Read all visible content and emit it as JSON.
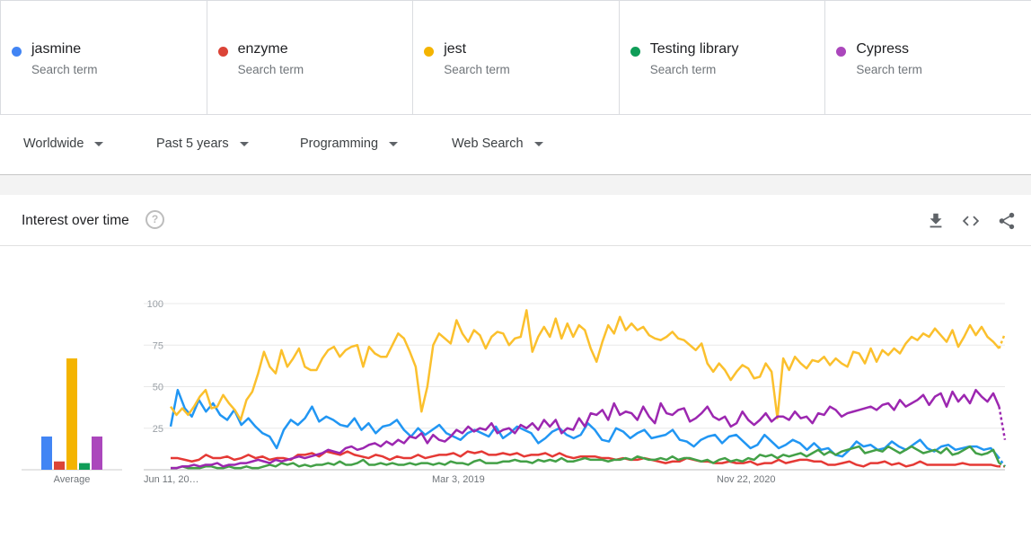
{
  "terms": [
    {
      "name": "jasmine",
      "sub": "Search term",
      "color": "#4285f4"
    },
    {
      "name": "enzyme",
      "sub": "Search term",
      "color": "#db4437"
    },
    {
      "name": "jest",
      "sub": "Search term",
      "color": "#f4b400"
    },
    {
      "name": "Testing library",
      "sub": "Search term",
      "color": "#0f9d58"
    },
    {
      "name": "Cypress",
      "sub": "Search term",
      "color": "#ab47bc"
    }
  ],
  "filters": {
    "region": "Worldwide",
    "time": "Past 5 years",
    "category": "Programming",
    "source": "Web Search"
  },
  "card": {
    "title": "Interest over time",
    "help": "?",
    "icons": [
      "download-icon",
      "embed-icon",
      "share-icon"
    ]
  },
  "chart_data": {
    "type": "line",
    "title": "Interest over time",
    "ylim": [
      0,
      100
    ],
    "y_ticks": [
      25,
      50,
      75,
      100
    ],
    "x_ticks": [
      "Jun 11, 20…",
      "Mar 3, 2019",
      "Nov 22, 2020"
    ],
    "grid": true,
    "average_label": "Average",
    "averages": [
      {
        "term": "jasmine",
        "value": 20,
        "color": "#4285f4"
      },
      {
        "term": "enzyme",
        "value": 5,
        "color": "#db4437"
      },
      {
        "term": "jest",
        "value": 67,
        "color": "#f4b400"
      },
      {
        "term": "Testing library",
        "value": 4,
        "color": "#0f9d58"
      },
      {
        "term": "Cypress",
        "value": 20,
        "color": "#ab47bc"
      }
    ],
    "series": [
      {
        "name": "jasmine",
        "color": "#2196f3",
        "values": [
          26,
          48,
          37,
          32,
          42,
          35,
          40,
          33,
          30,
          36,
          27,
          31,
          26,
          22,
          20,
          13,
          24,
          30,
          27,
          31,
          38,
          29,
          32,
          30,
          27,
          26,
          31,
          24,
          28,
          22,
          26,
          27,
          30,
          24,
          20,
          25,
          21,
          24,
          27,
          22,
          20,
          18,
          22,
          24,
          22,
          20,
          26,
          19,
          22,
          26,
          24,
          22,
          16,
          19,
          23,
          25,
          21,
          19,
          21,
          28,
          24,
          18,
          17,
          25,
          23,
          19,
          22,
          24,
          19,
          20,
          21,
          24,
          18,
          17,
          14,
          18,
          20,
          21,
          16,
          20,
          21,
          17,
          13,
          15,
          21,
          17,
          13,
          15,
          18,
          16,
          12,
          16,
          12,
          13,
          9,
          8,
          12,
          17,
          14,
          15,
          12,
          13,
          17,
          14,
          12,
          15,
          18,
          13,
          11,
          14,
          15,
          12,
          13,
          14,
          14,
          12,
          13,
          8,
          2
        ],
        "last_partial": true
      },
      {
        "name": "enzyme",
        "color": "#e53935",
        "values": [
          7,
          7,
          6,
          5,
          6,
          9,
          7,
          7,
          8,
          6,
          7,
          9,
          7,
          8,
          6,
          7,
          7,
          6,
          9,
          9,
          10,
          8,
          11,
          10,
          9,
          11,
          9,
          8,
          7,
          9,
          8,
          6,
          8,
          7,
          7,
          9,
          7,
          8,
          9,
          9,
          10,
          8,
          11,
          10,
          11,
          9,
          9,
          10,
          9,
          10,
          8,
          9,
          9,
          10,
          8,
          10,
          8,
          7,
          8,
          8,
          8,
          7,
          7,
          6,
          7,
          6,
          6,
          7,
          6,
          5,
          4,
          5,
          5,
          7,
          6,
          5,
          5,
          4,
          4,
          5,
          4,
          4,
          5,
          3,
          4,
          4,
          6,
          4,
          5,
          6,
          6,
          5,
          5,
          3,
          3,
          4,
          5,
          3,
          2,
          4,
          4,
          5,
          3,
          4,
          2,
          3,
          5,
          3,
          3,
          3,
          3,
          3,
          4,
          3,
          3,
          3,
          3,
          2,
          2
        ],
        "last_partial": true
      },
      {
        "name": "jest",
        "color": "#fbc02d",
        "values": [
          38,
          33,
          37,
          33,
          38,
          44,
          48,
          37,
          38,
          45,
          40,
          36,
          30,
          42,
          47,
          58,
          71,
          62,
          58,
          72,
          62,
          67,
          73,
          62,
          60,
          60,
          67,
          72,
          74,
          68,
          72,
          74,
          75,
          62,
          74,
          70,
          68,
          68,
          75,
          82,
          79,
          71,
          62,
          35,
          50,
          75,
          82,
          79,
          76,
          90,
          82,
          77,
          84,
          81,
          73,
          80,
          83,
          82,
          75,
          79,
          80,
          96,
          71,
          80,
          86,
          80,
          91,
          79,
          88,
          80,
          87,
          84,
          73,
          65,
          77,
          87,
          82,
          92,
          84,
          88,
          84,
          86,
          81,
          79,
          78,
          80,
          83,
          79,
          78,
          75,
          72,
          76,
          64,
          59,
          64,
          60,
          54,
          59,
          63,
          61,
          55,
          56,
          64,
          59,
          31,
          67,
          60,
          68,
          64,
          61,
          66,
          65,
          68,
          63,
          67,
          64,
          62,
          71,
          70,
          64,
          73,
          65,
          72,
          69,
          73,
          70,
          76,
          80,
          78,
          82,
          80,
          85,
          81,
          77,
          84,
          74,
          80,
          87,
          81,
          86,
          80,
          77,
          73,
          82
        ],
        "last_partial": true
      },
      {
        "name": "Testing library",
        "color": "#43a047",
        "values": [
          1,
          1,
          2,
          1,
          1,
          1,
          2,
          2,
          1,
          1,
          2,
          1,
          1,
          2,
          1,
          1,
          2,
          3,
          2,
          4,
          3,
          4,
          2,
          3,
          2,
          3,
          3,
          4,
          3,
          5,
          3,
          3,
          4,
          6,
          3,
          3,
          4,
          3,
          4,
          3,
          3,
          4,
          3,
          4,
          4,
          3,
          4,
          3,
          5,
          4,
          4,
          3,
          5,
          6,
          4,
          4,
          4,
          5,
          5,
          6,
          5,
          5,
          4,
          6,
          5,
          6,
          5,
          7,
          5,
          5,
          6,
          7,
          6,
          6,
          6,
          5,
          6,
          6,
          7,
          6,
          8,
          7,
          6,
          6,
          7,
          6,
          8,
          6,
          7,
          7,
          6,
          5,
          6,
          4,
          6,
          7,
          5,
          6,
          5,
          7,
          6,
          9,
          8,
          9,
          7,
          9,
          8,
          9,
          10,
          8,
          10,
          12,
          9,
          11,
          9,
          11,
          12,
          13,
          14,
          10,
          11,
          12,
          11,
          14,
          12,
          10,
          12,
          14,
          12,
          10,
          11,
          12,
          10,
          13,
          9,
          10,
          12,
          14,
          10,
          9,
          10,
          12,
          4,
          2
        ],
        "last_partial": true
      },
      {
        "name": "Cypress",
        "color": "#9c27b0",
        "values": [
          1,
          1,
          2,
          2,
          3,
          2,
          3,
          3,
          4,
          2,
          3,
          3,
          4,
          4,
          5,
          6,
          5,
          4,
          6,
          5,
          6,
          7,
          8,
          7,
          8,
          9,
          10,
          12,
          11,
          10,
          13,
          14,
          12,
          13,
          15,
          16,
          14,
          17,
          15,
          18,
          16,
          20,
          19,
          22,
          16,
          21,
          18,
          17,
          20,
          24,
          22,
          26,
          23,
          25,
          24,
          28,
          22,
          24,
          25,
          22,
          27,
          25,
          28,
          24,
          30,
          26,
          30,
          22,
          25,
          24,
          31,
          26,
          34,
          33,
          36,
          30,
          40,
          33,
          35,
          34,
          30,
          38,
          32,
          28,
          40,
          34,
          33,
          36,
          37,
          29,
          31,
          34,
          38,
          32,
          30,
          32,
          26,
          28,
          35,
          30,
          27,
          30,
          34,
          29,
          32,
          32,
          30,
          35,
          31,
          32,
          28,
          34,
          33,
          38,
          36,
          32,
          34,
          35,
          36,
          37,
          38,
          36,
          39,
          40,
          36,
          42,
          38,
          40,
          42,
          45,
          39,
          44,
          46,
          38,
          47,
          41,
          45,
          40,
          48,
          44,
          41,
          46,
          38,
          18
        ],
        "last_partial": true
      }
    ]
  }
}
